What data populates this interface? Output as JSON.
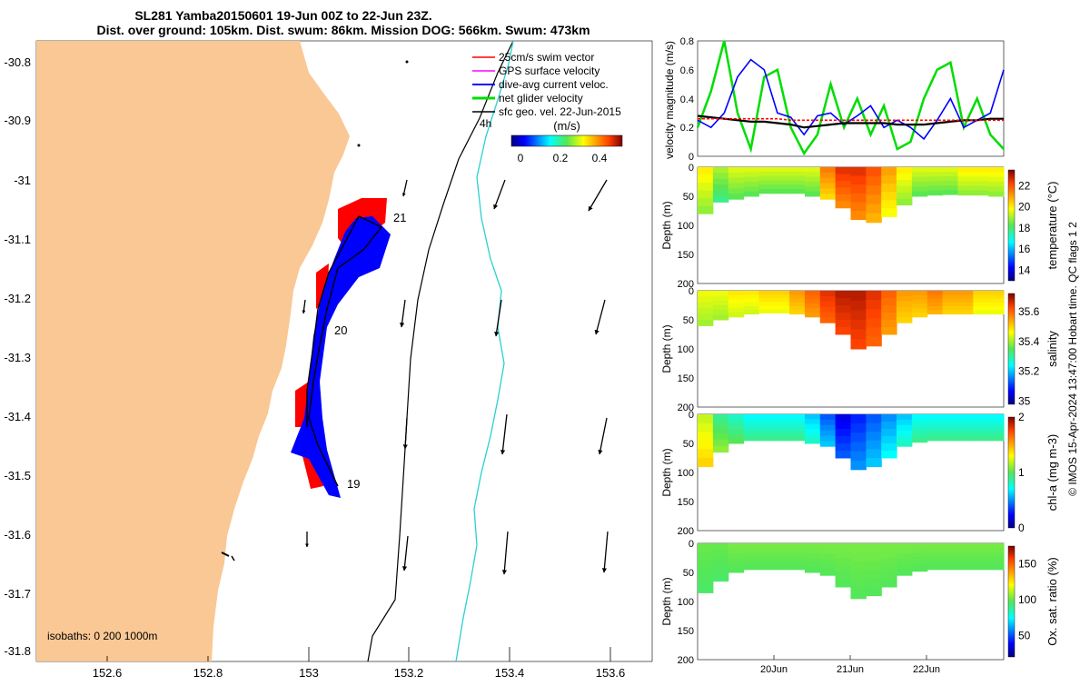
{
  "header": {
    "title_line1": "SL281 Yamba20150601 19-Jun 00Z to 22-Jun 23Z.",
    "title_line2": "Dist. over ground: 105km. Dist. swum: 86km. Mission DOG: 566km. Swum: 473km"
  },
  "legend": {
    "items": [
      {
        "label": "25cm/s swim vector",
        "color": "#ff0000"
      },
      {
        "label": "GPS surface velocity",
        "color": "#ff00ff"
      },
      {
        "label": "dive-avg current veloc.",
        "color": "#0000ff"
      },
      {
        "label": "net glider velocity",
        "color": "#00dd00"
      },
      {
        "label": "sfc geo. vel. 22-Jun-2015",
        "color": "#000000"
      }
    ],
    "label_4h": "4h",
    "colorbar_unit": "(m/s)",
    "colorbar_ticks": [
      "0",
      "0.2",
      "0.4"
    ]
  },
  "map": {
    "x_ticks": [
      "152.6",
      "152.8",
      "153",
      "153.2",
      "153.4",
      "153.6"
    ],
    "y_ticks": [
      "-30.8",
      "-30.9",
      "-31",
      "-31.1",
      "-31.2",
      "-31.3",
      "-31.4",
      "-31.5",
      "-31.6",
      "-31.7",
      "-31.8"
    ],
    "day_labels": [
      "21",
      "20",
      "19"
    ],
    "isobaths_label": "isobaths: 0   200  1000m",
    "land_color": "#f9c894"
  },
  "timeseries": {
    "ylabel": "velocity magnitude (m/s)",
    "y_ticks": [
      "0",
      "0.2",
      "0.4",
      "0.6",
      "0.8"
    ],
    "x_ticks": [
      "20Jun",
      "21Jun",
      "22Jun"
    ]
  },
  "sections": [
    {
      "label": "temperature (°C)",
      "cbar_ticks": [
        "14",
        "16",
        "18",
        "20",
        "22"
      ],
      "depth_label": "Depth (m)"
    },
    {
      "label": "salinity",
      "cbar_ticks": [
        "35",
        "35.2",
        "35.4",
        "35.6"
      ],
      "depth_label": "Depth (m)"
    },
    {
      "label": "chl-a (mg m-3)",
      "cbar_ticks": [
        "0",
        "1",
        "2"
      ],
      "depth_label": "Depth (m)"
    },
    {
      "label": "Ox. sat. ratio (%)",
      "cbar_ticks": [
        "50",
        "100",
        "150"
      ],
      "depth_label": "Depth (m)"
    }
  ],
  "depth_ticks": [
    "0",
    "50",
    "100",
    "150",
    "200"
  ],
  "credit": "© IMOS 15-Apr-2024 13:47:00 Hobart time. QC flags 1  2",
  "chart_data": [
    {
      "type": "line",
      "title": "",
      "xlabel": "",
      "ylabel": "velocity magnitude (m/s)",
      "ylim": [
        0,
        0.8
      ],
      "x_range": [
        "19-Jun 00Z",
        "22-Jun 23Z"
      ],
      "series": [
        {
          "color": "#00dd00",
          "values": [
            0.2,
            0.45,
            0.8,
            0.3,
            0.05,
            0.55,
            0.6,
            0.2,
            0.02,
            0.15,
            0.5,
            0.2,
            0.4,
            0.15,
            0.35,
            0.05,
            0.1,
            0.4,
            0.6,
            0.65,
            0.2,
            0.4,
            0.15,
            0.05
          ]
        },
        {
          "color": "#0000ff",
          "values": [
            0.25,
            0.2,
            0.3,
            0.55,
            0.67,
            0.6,
            0.3,
            0.27,
            0.15,
            0.28,
            0.3,
            0.22,
            0.28,
            0.35,
            0.2,
            0.25,
            0.2,
            0.12,
            0.25,
            0.4,
            0.2,
            0.25,
            0.3,
            0.6
          ]
        },
        {
          "color": "#000000",
          "values": [
            0.28,
            0.27,
            0.26,
            0.25,
            0.24,
            0.24,
            0.23,
            0.22,
            0.2,
            0.21,
            0.22,
            0.23,
            0.23,
            0.23,
            0.23,
            0.22,
            0.22,
            0.22,
            0.23,
            0.24,
            0.25,
            0.25,
            0.26,
            0.26
          ]
        },
        {
          "color": "#ff0000",
          "values": [
            0.26,
            0.26,
            0.26,
            0.26,
            0.26,
            0.26,
            0.26,
            0.25,
            0.25,
            0.25,
            0.25,
            0.25,
            0.25,
            0.25,
            0.25,
            0.25,
            0.25,
            0.25,
            0.25,
            0.25,
            0.25,
            0.25,
            0.25,
            0.25
          ]
        }
      ]
    },
    {
      "type": "heatmap",
      "xlabel": "",
      "ylabel": "Depth (m)",
      "ylim": [
        0,
        200
      ],
      "colorbar_label": "temperature (°C)",
      "colorbar_range": [
        13,
        23.5
      ],
      "profile_bottom_m": [
        80,
        60,
        55,
        50,
        45,
        45,
        45,
        50,
        55,
        70,
        90,
        95,
        85,
        65,
        50,
        48,
        47,
        48,
        48,
        50
      ],
      "surface_values": [
        20,
        19,
        19.5,
        19.5,
        19.5,
        19.5,
        19.5,
        19.5,
        21.5,
        22.5,
        22.5,
        22,
        21,
        20,
        19.5,
        19.5,
        19.5,
        20,
        20,
        20
      ]
    },
    {
      "type": "heatmap",
      "xlabel": "",
      "ylabel": "Depth (m)",
      "ylim": [
        0,
        200
      ],
      "colorbar_label": "salinity",
      "colorbar_range": [
        34.98,
        35.72
      ],
      "profile_bottom_m": [
        60,
        50,
        45,
        40,
        38,
        38,
        40,
        45,
        55,
        75,
        100,
        95,
        75,
        55,
        45,
        40,
        40,
        40,
        40,
        40
      ],
      "surface_values": [
        35.45,
        35.45,
        35.48,
        35.48,
        35.5,
        35.5,
        35.55,
        35.6,
        35.65,
        35.68,
        35.68,
        35.65,
        35.6,
        35.55,
        35.55,
        35.58,
        35.55,
        35.55,
        35.5,
        35.5
      ]
    },
    {
      "type": "heatmap",
      "xlabel": "",
      "ylabel": "Depth (m)",
      "ylim": [
        0,
        200
      ],
      "colorbar_label": "chl-a (mg m-3)",
      "colorbar_range": [
        0,
        2
      ],
      "profile_bottom_m": [
        90,
        65,
        50,
        45,
        45,
        45,
        45,
        50,
        55,
        75,
        95,
        90,
        75,
        55,
        48,
        45,
        45,
        45,
        45,
        45
      ],
      "surface_values": [
        1.3,
        1.0,
        0.9,
        0.8,
        0.8,
        0.8,
        0.8,
        0.7,
        0.5,
        0.3,
        0.4,
        0.5,
        0.6,
        0.7,
        0.8,
        0.8,
        0.8,
        0.8,
        0.8,
        0.8
      ]
    },
    {
      "type": "heatmap",
      "xlabel": "",
      "ylabel": "Depth (m)",
      "ylim": [
        0,
        200
      ],
      "colorbar_label": "Ox. sat. ratio (%)",
      "colorbar_range": [
        20,
        175
      ],
      "profile_bottom_m": [
        85,
        65,
        50,
        45,
        45,
        45,
        45,
        50,
        55,
        75,
        95,
        90,
        75,
        55,
        48,
        45,
        45,
        45,
        45,
        45
      ],
      "surface_values": [
        100,
        100,
        102,
        102,
        102,
        102,
        102,
        102,
        102,
        102,
        102,
        102,
        102,
        102,
        102,
        102,
        102,
        102,
        102,
        102
      ]
    }
  ]
}
